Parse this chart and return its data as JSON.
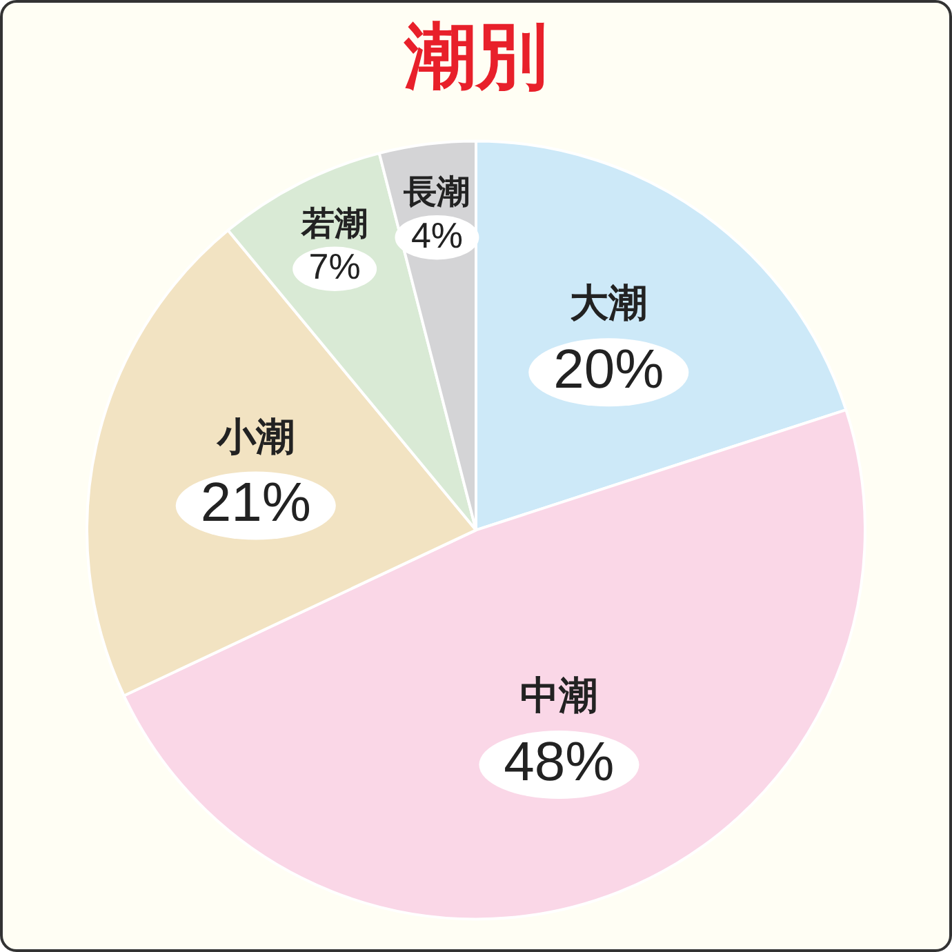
{
  "chart_data": {
    "type": "pie",
    "title": "潮別",
    "categories": [
      "大潮",
      "中潮",
      "小潮",
      "若潮",
      "長潮"
    ],
    "values": [
      20,
      48,
      21,
      7,
      4
    ],
    "value_labels": [
      "20%",
      "48%",
      "21%",
      "7%",
      "4%"
    ],
    "colors": [
      "#cde9f8",
      "#fad7e7",
      "#f2e3c2",
      "#d9ead5",
      "#d4d4d6"
    ],
    "legend": false
  }
}
